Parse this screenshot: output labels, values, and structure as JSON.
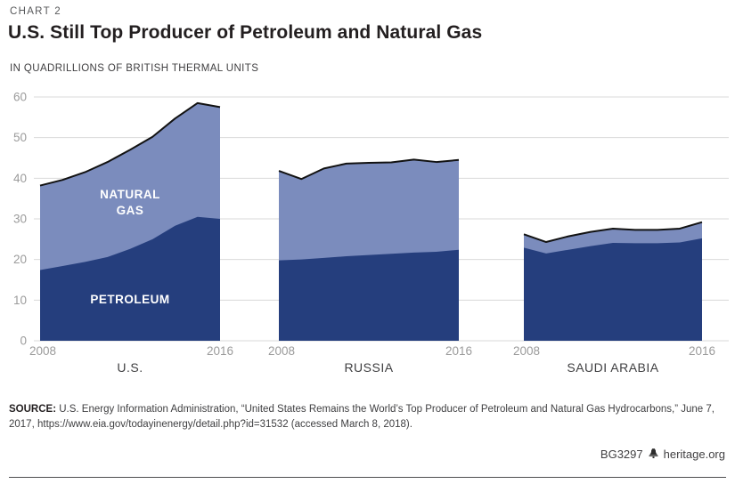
{
  "header": {
    "eyebrow": "CHART 2",
    "title": "U.S. Still Top Producer of Petroleum and Natural Gas",
    "subtitle": "IN QUADRILLIONS OF BRITISH THERMAL UNITS"
  },
  "chart_data": {
    "type": "area",
    "stacked": true,
    "title": "U.S. Still Top Producer of Petroleum and Natural Gas",
    "ylabel": "In Quadrillions of British Thermal Units",
    "years": [
      2008,
      2009,
      2010,
      2011,
      2012,
      2013,
      2014,
      2015,
      2016
    ],
    "x_tick_labels": [
      "2008",
      "2016"
    ],
    "ylim": [
      0,
      60
    ],
    "y_ticks": [
      0,
      10,
      20,
      30,
      40,
      50,
      60
    ],
    "grid": true,
    "series_labels": {
      "petroleum": "PETROLEUM",
      "natural_gas": "NATURAL GAS"
    },
    "colors": {
      "petroleum": "#253e7d",
      "natural_gas": "#7b8cbd",
      "total_line": "#121212",
      "grid": "#d9d9d9",
      "tick": "#9b9b9b",
      "panel_name": "#404042",
      "series_label": "#ffffff"
    },
    "panels": [
      {
        "name": "U.S.",
        "petroleum": [
          17.4,
          18.4,
          19.4,
          20.6,
          22.6,
          25.0,
          28.3,
          30.5,
          30.0
        ],
        "natural_gas": [
          20.8,
          21.2,
          22.1,
          23.4,
          24.4,
          25.2,
          26.4,
          28.0,
          27.5
        ]
      },
      {
        "name": "RUSSIA",
        "petroleum": [
          19.8,
          20.0,
          20.4,
          20.8,
          21.1,
          21.4,
          21.7,
          21.9,
          22.4
        ],
        "natural_gas": [
          22.0,
          19.8,
          22.0,
          22.8,
          22.7,
          22.5,
          22.9,
          22.1,
          22.1
        ]
      },
      {
        "name": "SAUDI ARABIA",
        "petroleum": [
          22.9,
          21.5,
          22.4,
          23.3,
          24.1,
          24.0,
          24.0,
          24.2,
          25.2
        ],
        "natural_gas": [
          3.3,
          2.8,
          3.3,
          3.5,
          3.5,
          3.3,
          3.3,
          3.4,
          4.0
        ]
      }
    ]
  },
  "footer": {
    "source_label": "SOURCE:",
    "source_text": "U.S. Energy Information Administration, “United States Remains the World’s Top Producer of Petroleum and Natural Gas Hydrocarbons,” June 7, 2017, https://www.eia.gov/todayinenergy/detail.php?id=31532 (accessed March 8, 2018).",
    "credit_id": "BG3297",
    "credit_site": "heritage.org",
    "logo_icon": "liberty-bell-icon"
  }
}
